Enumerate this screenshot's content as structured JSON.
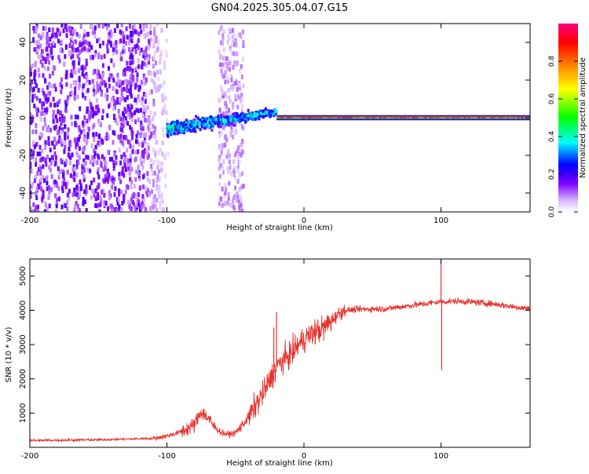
{
  "chart_data": [
    {
      "type": "heatmap",
      "title": "GN04.2025.305.04.07.G15",
      "xlabel": "Height of straight line (km)",
      "ylabel": "Frequency (Hz)",
      "xlim": [
        -200,
        165
      ],
      "ylim": [
        -50,
        50
      ],
      "xticks": [
        -200,
        -100,
        0,
        100
      ],
      "yticks": [
        -40,
        -20,
        0,
        20,
        40
      ],
      "colorbar": {
        "label": "Normalized spectral amplitude",
        "range": [
          0,
          1
        ],
        "ticks": [
          "0.0",
          "0.2",
          "0.4",
          "0.6",
          "0.8"
        ],
        "colors": [
          "#ffffff",
          "#c8a0ff",
          "#8000ff",
          "#0000ff",
          "#00ffff",
          "#00ff00",
          "#ffff00",
          "#ff8000",
          "#ff0000",
          "#ff0080"
        ]
      },
      "features": [
        {
          "name": "noise",
          "x_range": [
            -200,
            -95
          ],
          "f_range": [
            -50,
            50
          ],
          "amplitude": 0.15
        },
        {
          "name": "noise-band",
          "x_range": [
            -62,
            -44
          ],
          "f_range": [
            -50,
            50
          ],
          "amplitude": 0.08
        },
        {
          "name": "emerging-signal",
          "x_range": [
            -100,
            -20
          ],
          "f_start": -6,
          "f_end": 3,
          "amplitude": 0.35
        },
        {
          "name": "main-line",
          "x_range": [
            -20,
            165
          ],
          "f_center": 0,
          "amplitude": 0.9
        }
      ]
    },
    {
      "type": "line",
      "xlabel": "Height of straight line (km)",
      "ylabel": "SNR (10 * v/v)",
      "xlim": [
        -200,
        165
      ],
      "ylim": [
        0,
        5500
      ],
      "xticks": [
        -200,
        -100,
        0,
        100
      ],
      "yticks": [
        1000,
        2000,
        3000,
        4000,
        5000
      ],
      "color": "#e8302c",
      "series": [
        {
          "name": "SNR",
          "x": [
            -200,
            -150,
            -110,
            -100,
            -90,
            -80,
            -75,
            -70,
            -65,
            -60,
            -55,
            -50,
            -45,
            -40,
            -35,
            -30,
            -25,
            -20,
            -15,
            -10,
            -5,
            0,
            5,
            10,
            15,
            20,
            25,
            30,
            40,
            50,
            60,
            70,
            80,
            90,
            95,
            100,
            105,
            110,
            120,
            130,
            140,
            150,
            160,
            165
          ],
          "y": [
            200,
            220,
            260,
            330,
            450,
            650,
            1050,
            850,
            580,
            420,
            380,
            420,
            650,
            900,
            1250,
            1550,
            1950,
            2350,
            2550,
            2700,
            2950,
            3150,
            3300,
            3400,
            3500,
            3700,
            3900,
            4000,
            4030,
            4040,
            4050,
            4100,
            4150,
            4200,
            4230,
            4250,
            4260,
            4270,
            4250,
            4220,
            4180,
            4120,
            4070,
            4050
          ]
        }
      ],
      "spikes": [
        {
          "x": -20,
          "y": 3950
        },
        {
          "x": -22,
          "y": 3500
        },
        {
          "x": 100,
          "y": 5500
        },
        {
          "x": 100.5,
          "y": 2250
        }
      ]
    }
  ]
}
